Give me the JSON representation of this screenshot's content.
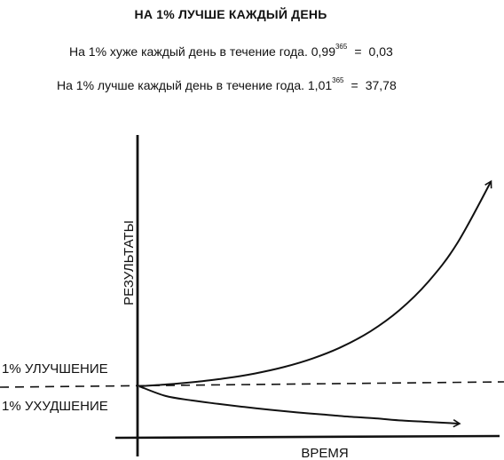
{
  "header": {
    "title": "НА 1% ЛУЧШЕ КАЖДЫЙ ДЕНЬ"
  },
  "formulas": [
    {
      "text": "На 1% хуже каждый день в течение года. 0,99",
      "exponent": "365",
      "equals": "=",
      "result": "0,03"
    },
    {
      "text": "На 1% лучше каждый день в течение года. 1,01",
      "exponent": "365",
      "equals": "=",
      "result": "37,78"
    }
  ],
  "chart_data": {
    "type": "line",
    "title": "",
    "xlabel": "ВРЕМЯ",
    "ylabel": "РЕЗУЛЬТАТЫ",
    "xlim": [
      0,
      365
    ],
    "ylim": [
      0,
      40
    ],
    "grid": false,
    "legend": "none",
    "series": [
      {
        "x": [
          0,
          30,
          60,
          90,
          120,
          150,
          180,
          210,
          240,
          270,
          300,
          330,
          365
        ],
        "values": [
          1,
          1.35,
          1.82,
          2.45,
          3.3,
          4.45,
          6.0,
          8.08,
          10.89,
          14.68,
          19.79,
          26.68,
          37.78
        ]
      },
      {
        "x": [
          0,
          30,
          60,
          90,
          120,
          150,
          180,
          210,
          240,
          270,
          300,
          330,
          365
        ],
        "values": [
          1,
          0.74,
          0.55,
          0.41,
          0.3,
          0.22,
          0.16,
          0.12,
          0.09,
          0.07,
          0.05,
          0.04,
          0.03
        ]
      }
    ],
    "annotations": [
      {
        "text": "1% УЛУЧШЕНИЕ",
        "target": "upper-line"
      },
      {
        "text": "1% УХУДШЕНИЕ",
        "target": "lower-line"
      }
    ],
    "colors": {
      "ink": "#111111",
      "background": "#ffffff"
    }
  }
}
